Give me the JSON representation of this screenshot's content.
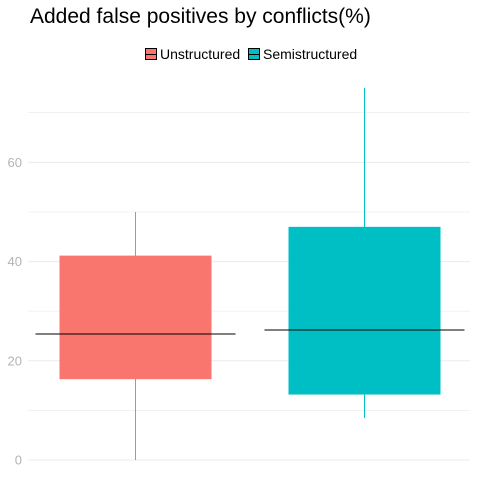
{
  "chart_data": {
    "type": "boxplot",
    "title": "Added false positives by conflicts(%)",
    "xlabel": "",
    "ylabel": "",
    "ylim": [
      -1,
      77
    ],
    "yticks": [
      0,
      20,
      40,
      60
    ],
    "grid": true,
    "legend_position": "top",
    "legend": [
      "Unstructured",
      "Semistructured"
    ],
    "series": [
      {
        "name": "Unstructured",
        "color": "#F8766D",
        "min": 0,
        "q1": 16.3,
        "median": 25.4,
        "q3": 41.2,
        "max": 50
      },
      {
        "name": "Semistructured",
        "color": "#00BFC4",
        "min": 8.5,
        "q1": 13.2,
        "median": 26.2,
        "q3": 47,
        "max": 75
      }
    ]
  }
}
